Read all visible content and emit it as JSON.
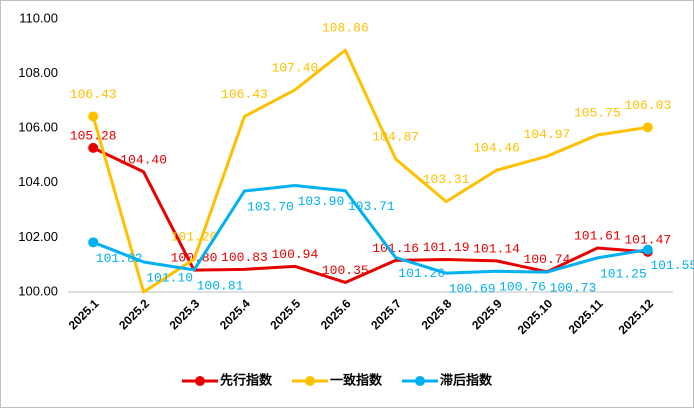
{
  "chart_data": {
    "type": "line",
    "categories": [
      "2025.1",
      "2025.2",
      "2025.3",
      "2025.4",
      "2025.5",
      "2025.6",
      "2025.7",
      "2025.8",
      "2025.9",
      "2025.10",
      "2025.11",
      "2025.12"
    ],
    "series": [
      {
        "name": "先行指数",
        "color": "#e60000",
        "values": [
          105.28,
          104.4,
          100.8,
          100.83,
          100.94,
          100.35,
          101.16,
          101.19,
          101.14,
          100.74,
          101.61,
          101.47
        ],
        "value_labels": [
          "105.28",
          "104.40",
          "100.80",
          "100.83",
          "100.94",
          "100.35",
          "101.16",
          "101.19",
          "101.14",
          "100.74",
          "101.61",
          "101.47"
        ]
      },
      {
        "name": "一致指数",
        "color": "#ffc000",
        "values": [
          106.43,
          100.0,
          101.2,
          106.43,
          107.4,
          108.86,
          104.87,
          103.31,
          104.46,
          104.97,
          105.75,
          106.03
        ],
        "value_labels": [
          "106.43",
          null,
          "101.20",
          "106.43",
          "107.40",
          "108.86",
          "104.87",
          "103.31",
          "104.46",
          "104.97",
          "105.75",
          "106.03"
        ]
      },
      {
        "name": "滞后指数",
        "color": "#00b0f0",
        "values": [
          101.82,
          101.1,
          100.81,
          103.7,
          103.9,
          103.71,
          101.26,
          100.69,
          100.76,
          100.73,
          101.25,
          101.55
        ],
        "value_labels": [
          "101.82",
          "101.10",
          "100.81",
          "103.70",
          "103.90",
          "103.71",
          "101.26",
          "100.69",
          "100.76",
          "100.73",
          "101.25",
          "101.55"
        ]
      }
    ],
    "ylim": [
      100,
      110
    ],
    "yticks": [
      {
        "value": 100,
        "label": "100.00"
      },
      {
        "value": 102,
        "label": "102.00"
      },
      {
        "value": 104,
        "label": "104.00"
      },
      {
        "value": 106,
        "label": "106.00"
      },
      {
        "value": 108,
        "label": "108.00"
      },
      {
        "value": 110,
        "label": "110.00"
      }
    ],
    "legend": "bottom"
  }
}
